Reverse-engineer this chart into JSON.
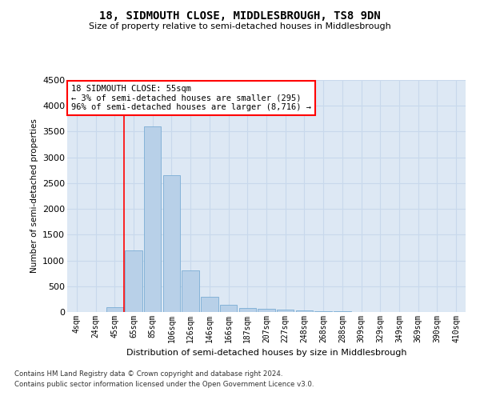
{
  "title": "18, SIDMOUTH CLOSE, MIDDLESBROUGH, TS8 9DN",
  "subtitle": "Size of property relative to semi-detached houses in Middlesbrough",
  "xlabel": "Distribution of semi-detached houses by size in Middlesbrough",
  "ylabel": "Number of semi-detached properties",
  "categories": [
    "4sqm",
    "24sqm",
    "45sqm",
    "65sqm",
    "85sqm",
    "106sqm",
    "126sqm",
    "146sqm",
    "166sqm",
    "187sqm",
    "207sqm",
    "227sqm",
    "248sqm",
    "268sqm",
    "288sqm",
    "309sqm",
    "329sqm",
    "349sqm",
    "369sqm",
    "390sqm",
    "410sqm"
  ],
  "values": [
    0,
    0,
    100,
    1200,
    3600,
    2650,
    800,
    300,
    140,
    80,
    60,
    50,
    30,
    15,
    8,
    5,
    3,
    2,
    1,
    1,
    0
  ],
  "bar_color": "#b8d0e8",
  "bar_edge_color": "#7aadd4",
  "grid_color": "#c8d8ec",
  "background_color": "#dde8f4",
  "annotation_box_text": "18 SIDMOUTH CLOSE: 55sqm\n← 3% of semi-detached houses are smaller (295)\n96% of semi-detached houses are larger (8,716) →",
  "ylim": [
    0,
    4500
  ],
  "yticks": [
    0,
    500,
    1000,
    1500,
    2000,
    2500,
    3000,
    3500,
    4000,
    4500
  ],
  "footer_line1": "Contains HM Land Registry data © Crown copyright and database right 2024.",
  "footer_line2": "Contains public sector information licensed under the Open Government Licence v3.0.",
  "red_line_x": 2.5
}
